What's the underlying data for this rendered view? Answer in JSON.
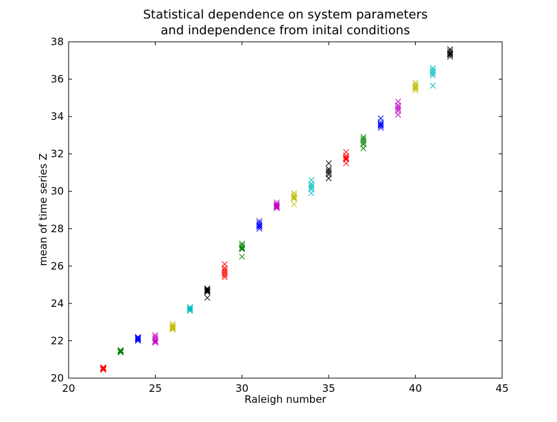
{
  "chart_data": {
    "type": "scatter",
    "title": [
      "Statistical dependence on system parameters",
      "and independence from inital conditions"
    ],
    "xlabel": "Raleigh number",
    "ylabel": "mean of time series Z",
    "xlim": [
      20,
      45
    ],
    "ylim": [
      20,
      38
    ],
    "xticks": [
      "20",
      "25",
      "30",
      "35",
      "40",
      "45"
    ],
    "yticks": [
      "20",
      "22",
      "24",
      "26",
      "28",
      "30",
      "32",
      "34",
      "36",
      "38"
    ],
    "marker": "x",
    "grid": false,
    "legend": false,
    "series": [
      {
        "color": "#ff0000",
        "points": [
          [
            22,
            20.5
          ],
          [
            22,
            20.55
          ],
          [
            22,
            20.48
          ],
          [
            22,
            20.52
          ],
          [
            22,
            20.58
          ],
          [
            22,
            20.45
          ]
        ]
      },
      {
        "color": "#008000",
        "points": [
          [
            23,
            21.4
          ],
          [
            23,
            21.45
          ],
          [
            23,
            21.5
          ],
          [
            23,
            21.42
          ],
          [
            23,
            21.38
          ],
          [
            23,
            21.48
          ]
        ]
      },
      {
        "color": "#0000ff",
        "points": [
          [
            24,
            22.1
          ],
          [
            24,
            22.2
          ],
          [
            24,
            22.0
          ],
          [
            24,
            22.15
          ],
          [
            24,
            22.05
          ],
          [
            24,
            22.18
          ]
        ]
      },
      {
        "color": "#bf00bf",
        "points": [
          [
            25,
            21.9
          ],
          [
            25,
            22.0
          ],
          [
            25,
            22.1
          ],
          [
            25,
            22.2
          ],
          [
            25,
            22.3
          ],
          [
            25,
            21.95
          ]
        ]
      },
      {
        "color": "#bfbf00",
        "points": [
          [
            26,
            22.6
          ],
          [
            26,
            22.7
          ],
          [
            26,
            22.8
          ],
          [
            26,
            22.9
          ],
          [
            26,
            22.65
          ],
          [
            26,
            22.75
          ]
        ]
      },
      {
        "color": "#00bfbf",
        "points": [
          [
            27,
            23.6
          ],
          [
            27,
            23.7
          ],
          [
            27,
            23.8
          ],
          [
            27,
            23.65
          ],
          [
            27,
            23.75
          ]
        ]
      },
      {
        "color": "#000000",
        "points": [
          [
            28,
            24.3
          ],
          [
            28,
            24.6
          ],
          [
            28,
            24.7
          ],
          [
            28,
            24.8
          ],
          [
            28,
            24.65
          ],
          [
            28,
            24.75
          ]
        ]
      },
      {
        "color": "#ff0000",
        "points": [
          [
            29,
            25.4
          ],
          [
            29,
            25.6
          ],
          [
            29,
            25.7
          ],
          [
            29,
            25.8
          ],
          [
            29,
            25.9
          ],
          [
            29,
            26.1
          ],
          [
            29,
            25.5
          ]
        ]
      },
      {
        "color": "#008000",
        "points": [
          [
            30,
            26.5
          ],
          [
            30,
            26.9
          ],
          [
            30,
            27.0
          ],
          [
            30,
            27.1
          ],
          [
            30,
            27.2
          ],
          [
            30,
            26.95
          ]
        ]
      },
      {
        "color": "#0000ff",
        "points": [
          [
            31,
            28.0
          ],
          [
            31,
            28.1
          ],
          [
            31,
            28.2
          ],
          [
            31,
            28.3
          ],
          [
            31,
            28.4
          ],
          [
            31,
            28.15
          ]
        ]
      },
      {
        "color": "#bf00bf",
        "points": [
          [
            32,
            29.1
          ],
          [
            32,
            29.2
          ],
          [
            32,
            29.3
          ],
          [
            32,
            29.4
          ],
          [
            32,
            29.15
          ],
          [
            32,
            29.25
          ]
        ]
      },
      {
        "color": "#bfbf00",
        "points": [
          [
            33,
            29.3
          ],
          [
            33,
            29.6
          ],
          [
            33,
            29.7
          ],
          [
            33,
            29.8
          ],
          [
            33,
            29.9
          ],
          [
            33,
            29.65
          ]
        ]
      },
      {
        "color": "#00bfbf",
        "points": [
          [
            34,
            29.9
          ],
          [
            34,
            30.1
          ],
          [
            34,
            30.3
          ],
          [
            34,
            30.4
          ],
          [
            34,
            30.6
          ],
          [
            34,
            30.2
          ]
        ]
      },
      {
        "color": "#000000",
        "points": [
          [
            35,
            30.7
          ],
          [
            35,
            30.9
          ],
          [
            35,
            31.1
          ],
          [
            35,
            31.2
          ],
          [
            35,
            31.5
          ],
          [
            35,
            31.0
          ]
        ]
      },
      {
        "color": "#ff0000",
        "points": [
          [
            36,
            31.5
          ],
          [
            36,
            31.7
          ],
          [
            36,
            31.8
          ],
          [
            36,
            31.9
          ],
          [
            36,
            32.1
          ],
          [
            36,
            31.75
          ]
        ]
      },
      {
        "color": "#008000",
        "points": [
          [
            37,
            32.3
          ],
          [
            37,
            32.5
          ],
          [
            37,
            32.6
          ],
          [
            37,
            32.8
          ],
          [
            37,
            32.9
          ],
          [
            37,
            32.7
          ]
        ]
      },
      {
        "color": "#0000ff",
        "points": [
          [
            38,
            33.4
          ],
          [
            38,
            33.5
          ],
          [
            38,
            33.6
          ],
          [
            38,
            33.7
          ],
          [
            38,
            33.9
          ],
          [
            38,
            33.55
          ]
        ]
      },
      {
        "color": "#bf00bf",
        "points": [
          [
            39,
            34.1
          ],
          [
            39,
            34.3
          ],
          [
            39,
            34.4
          ],
          [
            39,
            34.6
          ],
          [
            39,
            34.8
          ],
          [
            39,
            34.5
          ]
        ]
      },
      {
        "color": "#bfbf00",
        "points": [
          [
            40,
            35.4
          ],
          [
            40,
            35.5
          ],
          [
            40,
            35.6
          ],
          [
            40,
            35.7
          ],
          [
            40,
            35.8
          ],
          [
            40,
            35.55
          ]
        ]
      },
      {
        "color": "#00bfbf",
        "points": [
          [
            41,
            35.65
          ],
          [
            41,
            36.2
          ],
          [
            41,
            36.4
          ],
          [
            41,
            36.5
          ],
          [
            41,
            36.6
          ],
          [
            41,
            36.3
          ]
        ]
      },
      {
        "color": "#000000",
        "points": [
          [
            42,
            37.2
          ],
          [
            42,
            37.3
          ],
          [
            42,
            37.4
          ],
          [
            42,
            37.5
          ],
          [
            42,
            37.6
          ],
          [
            42,
            37.35
          ]
        ]
      }
    ]
  }
}
